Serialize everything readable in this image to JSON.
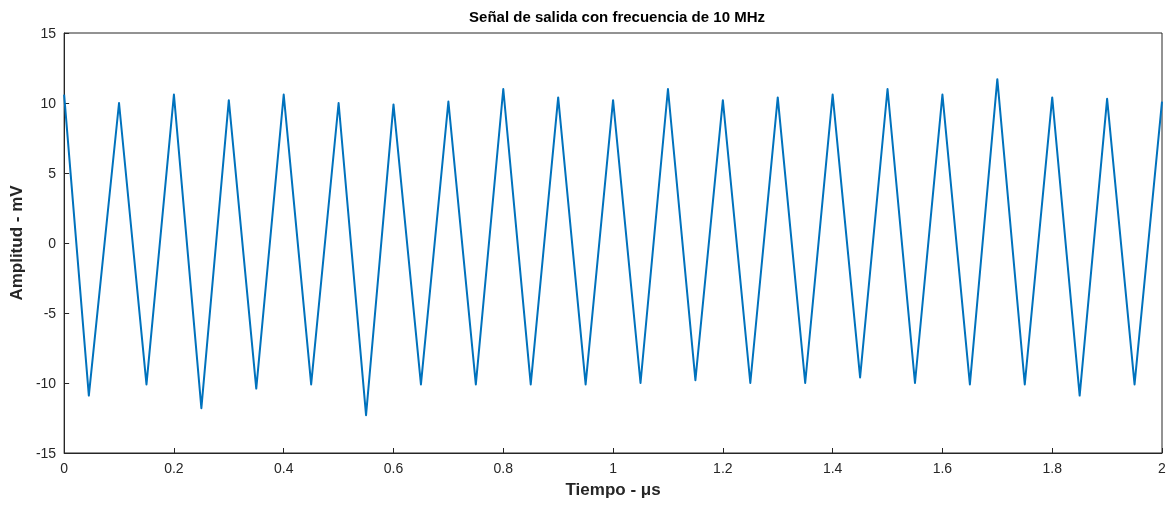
{
  "chart_data": {
    "type": "line",
    "title": "Señal de salida con frecuencia de 10 MHz",
    "xlabel": "Tiempo - μs",
    "ylabel": "Amplitud - mV",
    "x": [
      0,
      0.045,
      0.1,
      0.15,
      0.2,
      0.25,
      0.3,
      0.35,
      0.4,
      0.45,
      0.5,
      0.55,
      0.6,
      0.65,
      0.7,
      0.75,
      0.8,
      0.85,
      0.9,
      0.95,
      1.0,
      1.05,
      1.1,
      1.15,
      1.2,
      1.25,
      1.3,
      1.35,
      1.4,
      1.45,
      1.5,
      1.55,
      1.6,
      1.65,
      1.7,
      1.75,
      1.8,
      1.85,
      1.9,
      1.95,
      2.0
    ],
    "series": [
      {
        "color": "#0072bd",
        "values": [
          10.6,
          -10.9,
          10,
          -10.1,
          10.6,
          -11.8,
          10.2,
          -10.4,
          10.6,
          -10.1,
          10,
          -12.3,
          9.9,
          -10.1,
          10.1,
          -10.1,
          11,
          -10.1,
          10.4,
          -10.1,
          10.2,
          -10,
          11,
          -9.8,
          10.2,
          -10,
          10.4,
          -10,
          10.6,
          -9.6,
          11,
          -10,
          10.6,
          -10.1,
          11.7,
          -10.1,
          10.4,
          -10.9,
          10.3,
          -10.1,
          10.1
        ]
      }
    ],
    "xlim": [
      0,
      2
    ],
    "xticks": [
      0,
      0.2,
      0.4,
      0.6,
      0.8,
      1,
      1.2,
      1.4,
      1.6,
      1.8,
      2
    ],
    "ylim": [
      -15,
      15
    ],
    "yticks": [
      -15,
      -10,
      -5,
      0,
      5,
      10,
      15
    ],
    "grid": false,
    "marker": "none",
    "line_style": "solid"
  }
}
